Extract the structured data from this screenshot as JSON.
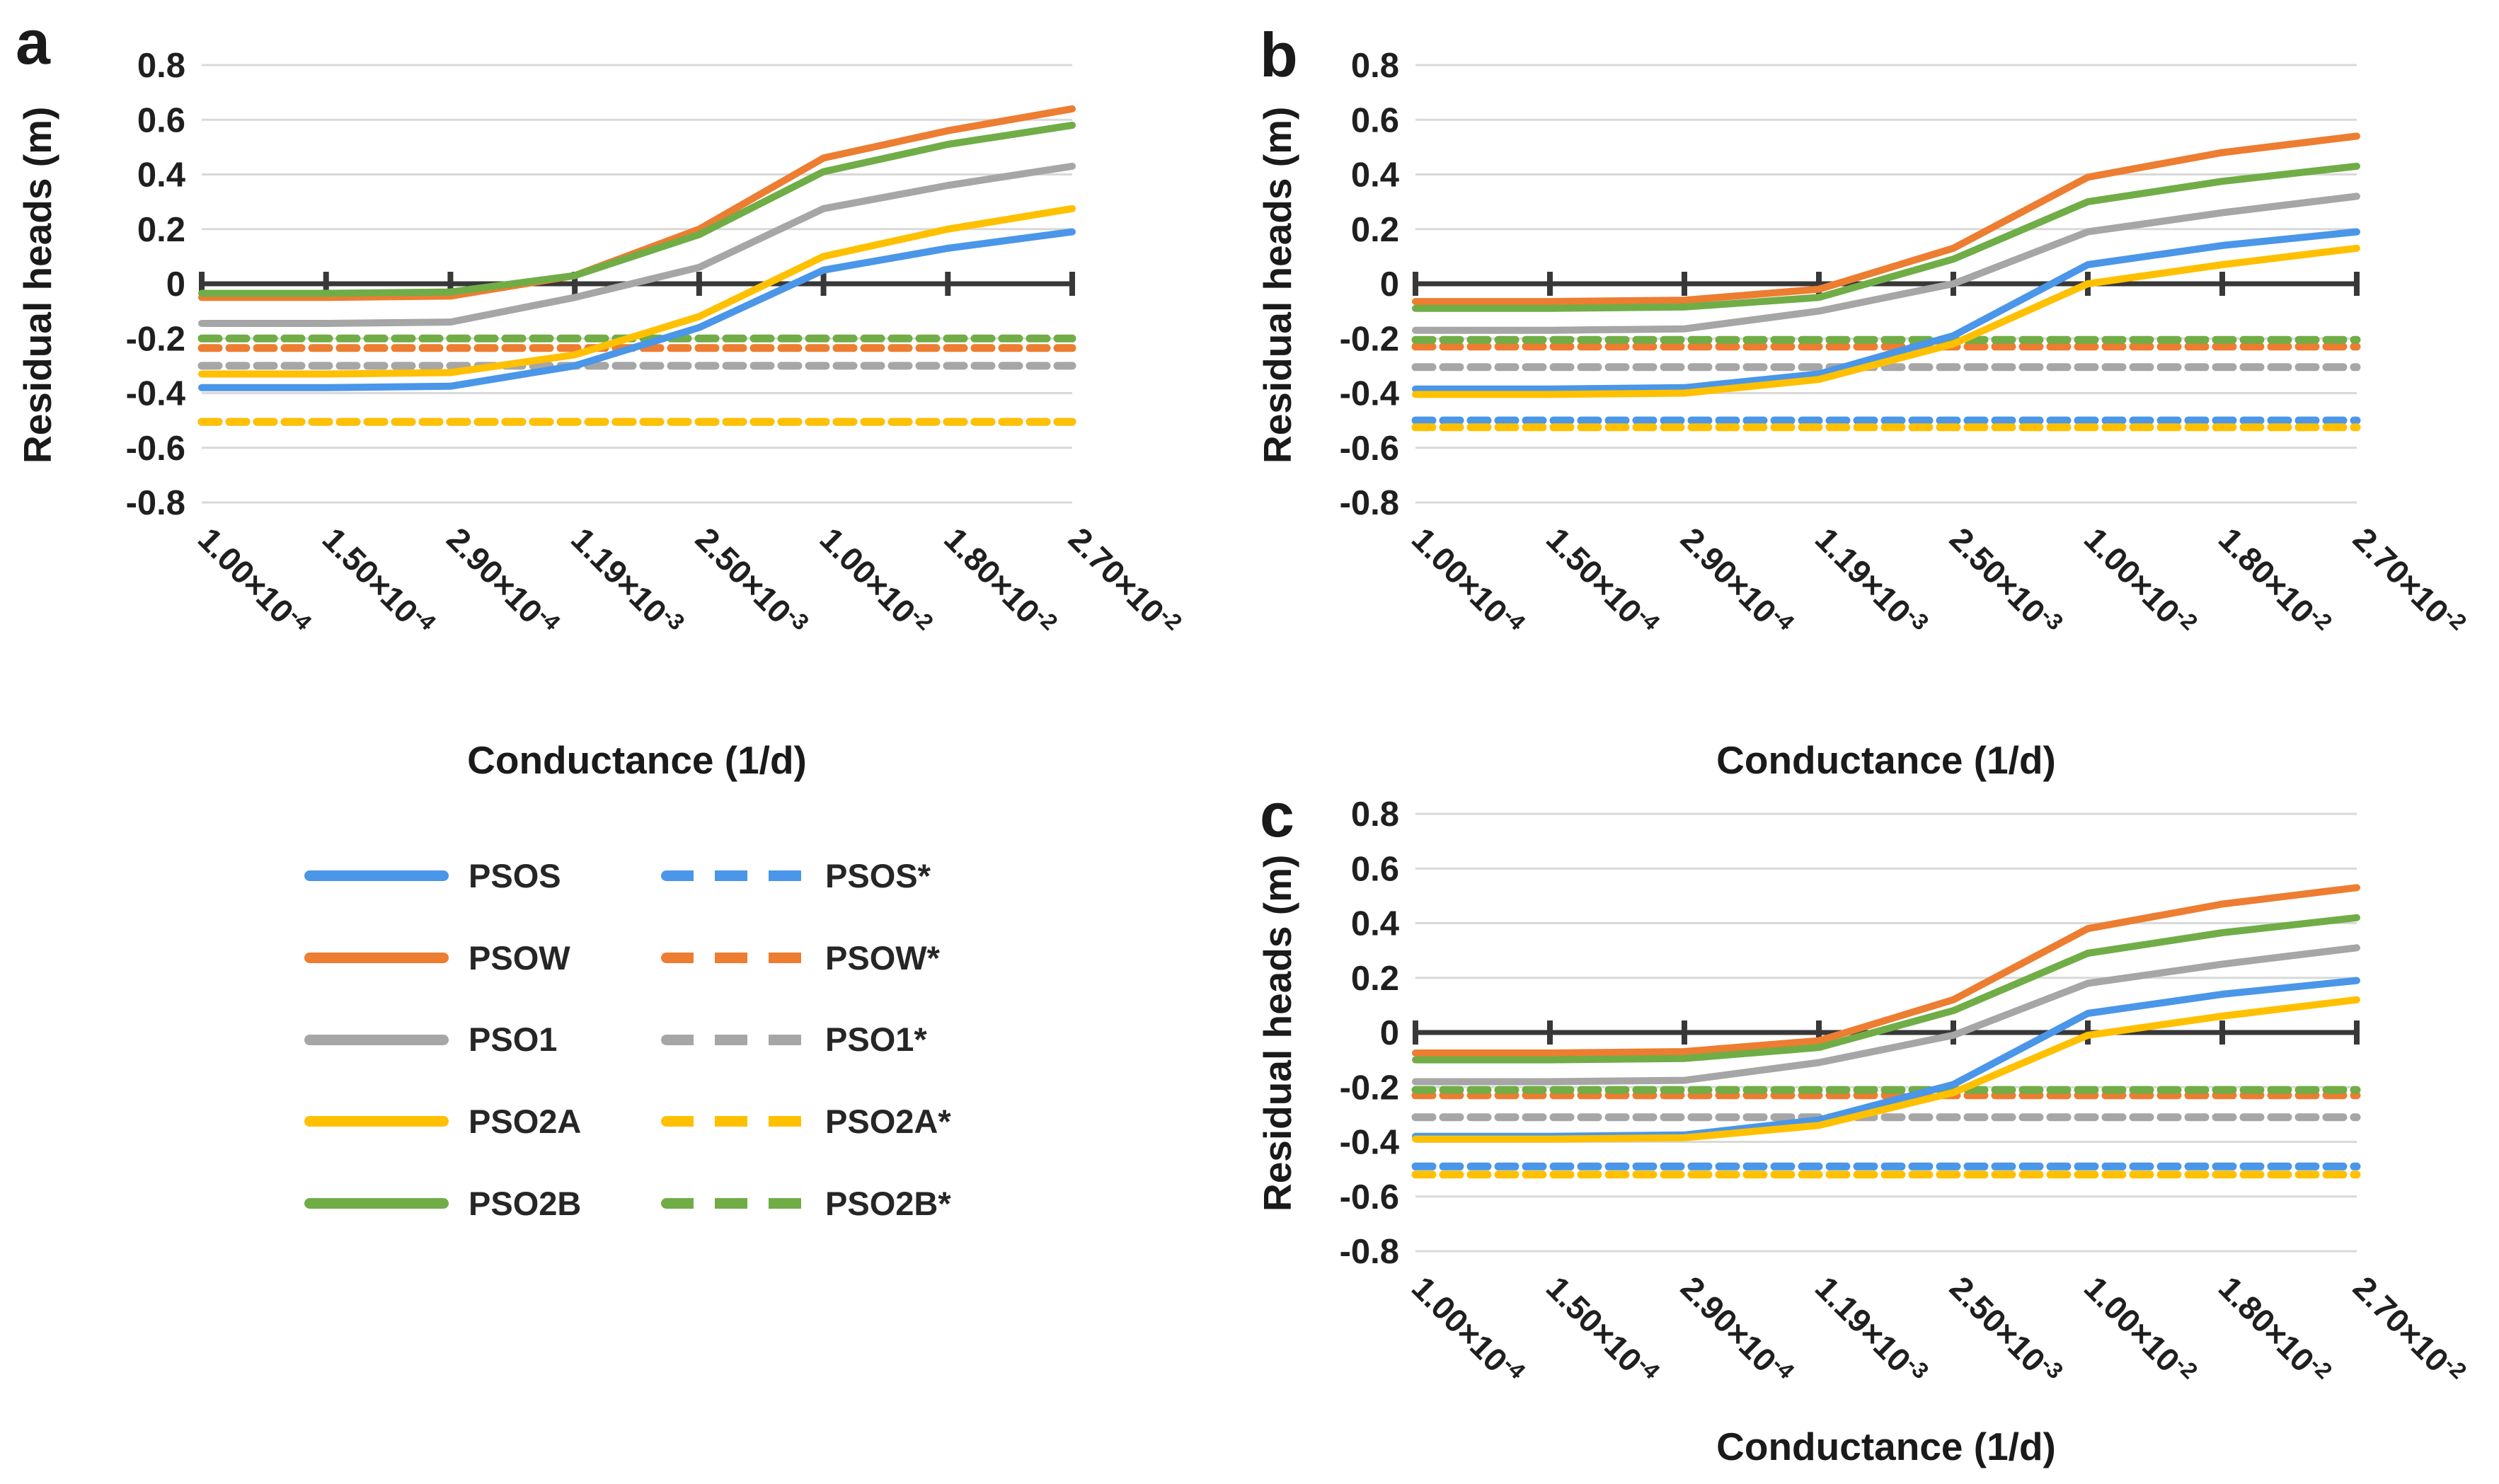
{
  "figure": {
    "panel_letters": [
      "a",
      "b",
      "c"
    ],
    "y_axis_title": "Residual heads (m)",
    "x_axis_title": "Conductance (1/d)"
  },
  "axes": {
    "y_tick_labels": [
      "0.8",
      "0.6",
      "0.4",
      "0.2",
      "0",
      "-0.2",
      "-0.4",
      "-0.6",
      "-0.8"
    ],
    "y_max": 0.8,
    "y_min": -0.8,
    "y_step": 0.2,
    "x_tick_labels": [
      {
        "base": "1.00×10",
        "exp": "-4"
      },
      {
        "base": "1.50×10",
        "exp": "-4"
      },
      {
        "base": "2.90×10",
        "exp": "-4"
      },
      {
        "base": "1.19×10",
        "exp": "-3"
      },
      {
        "base": "2.50×10",
        "exp": "-3"
      },
      {
        "base": "1.00×10",
        "exp": "-2"
      },
      {
        "base": "1.80×10",
        "exp": "-2"
      },
      {
        "base": "2.70×10",
        "exp": "-2"
      }
    ]
  },
  "colors": {
    "blue": "#4A96E8",
    "orange": "#ED7D31",
    "gray": "#A6A6A6",
    "yellow": "#FFC000",
    "green": "#70AD47",
    "axis": "#383838",
    "gridline": "#D9D9D9",
    "text": "#1f1f1f"
  },
  "legend": {
    "items": [
      {
        "label": "PSOS",
        "style": "solid",
        "color": "#4A96E8"
      },
      {
        "label": "PSOS*",
        "style": "dashed",
        "color": "#4A96E8"
      },
      {
        "label": "PSOW",
        "style": "solid",
        "color": "#ED7D31"
      },
      {
        "label": "PSOW*",
        "style": "dashed",
        "color": "#ED7D31"
      },
      {
        "label": "PSO1",
        "style": "solid",
        "color": "#A6A6A6"
      },
      {
        "label": "PSO1*",
        "style": "dashed",
        "color": "#A6A6A6"
      },
      {
        "label": "PSO2A",
        "style": "solid",
        "color": "#FFC000"
      },
      {
        "label": "PSO2A*",
        "style": "dashed",
        "color": "#FFC000"
      },
      {
        "label": "PSO2B",
        "style": "solid",
        "color": "#70AD47"
      },
      {
        "label": "PSO2B*",
        "style": "dashed",
        "color": "#70AD47"
      }
    ]
  },
  "chart_data": [
    {
      "type": "line",
      "panel": "a",
      "xlabel": "Conductance (1/d)",
      "ylabel": "Residual heads (m)",
      "ylim": [
        -0.8,
        0.8
      ],
      "grid": true,
      "categories": [
        "1.00×10⁻⁴",
        "1.50×10⁻⁴",
        "2.90×10⁻⁴",
        "1.19×10⁻³",
        "2.50×10⁻³",
        "1.00×10⁻²",
        "1.80×10⁻²",
        "2.70×10⁻²"
      ],
      "series": [
        {
          "name": "PSOS",
          "color": "#4A96E8",
          "dashed": false,
          "values": [
            -0.38,
            -0.38,
            -0.375,
            -0.3,
            -0.16,
            0.05,
            0.13,
            0.19
          ]
        },
        {
          "name": "PSOW",
          "color": "#ED7D31",
          "dashed": false,
          "values": [
            -0.05,
            -0.05,
            -0.045,
            0.03,
            0.2,
            0.46,
            0.56,
            0.64
          ]
        },
        {
          "name": "PSO1",
          "color": "#A6A6A6",
          "dashed": false,
          "values": [
            -0.145,
            -0.145,
            -0.14,
            -0.05,
            0.06,
            0.275,
            0.36,
            0.43
          ]
        },
        {
          "name": "PSO2A",
          "color": "#FFC000",
          "dashed": false,
          "values": [
            -0.33,
            -0.33,
            -0.325,
            -0.26,
            -0.12,
            0.1,
            0.2,
            0.275
          ]
        },
        {
          "name": "PSO2B",
          "color": "#70AD47",
          "dashed": false,
          "values": [
            -0.035,
            -0.035,
            -0.03,
            0.03,
            0.18,
            0.41,
            0.51,
            0.58
          ]
        },
        {
          "name": "PSOS*",
          "color": "#4A96E8",
          "dashed": true,
          "values": [
            -0.505,
            -0.505,
            -0.505,
            -0.505,
            -0.505,
            -0.505,
            -0.505,
            -0.505
          ]
        },
        {
          "name": "PSOW*",
          "color": "#ED7D31",
          "dashed": true,
          "values": [
            -0.235,
            -0.235,
            -0.235,
            -0.235,
            -0.235,
            -0.235,
            -0.235,
            -0.235
          ]
        },
        {
          "name": "PSO1*",
          "color": "#A6A6A6",
          "dashed": true,
          "values": [
            -0.3,
            -0.3,
            -0.3,
            -0.3,
            -0.3,
            -0.3,
            -0.3,
            -0.3
          ]
        },
        {
          "name": "PSO2A*",
          "color": "#FFC000",
          "dashed": true,
          "values": [
            -0.505,
            -0.505,
            -0.505,
            -0.505,
            -0.505,
            -0.505,
            -0.505,
            -0.505
          ]
        },
        {
          "name": "PSO2B*",
          "color": "#70AD47",
          "dashed": true,
          "values": [
            -0.2,
            -0.2,
            -0.2,
            -0.2,
            -0.2,
            -0.2,
            -0.2,
            -0.2
          ]
        }
      ]
    },
    {
      "type": "line",
      "panel": "b",
      "xlabel": "Conductance (1/d)",
      "ylabel": "Residual heads (m)",
      "ylim": [
        -0.8,
        0.8
      ],
      "grid": true,
      "categories": [
        "1.00×10⁻⁴",
        "1.50×10⁻⁴",
        "2.90×10⁻⁴",
        "1.19×10⁻³",
        "2.50×10⁻³",
        "1.00×10⁻²",
        "1.80×10⁻²",
        "2.70×10⁻²"
      ],
      "series": [
        {
          "name": "PSOS",
          "color": "#4A96E8",
          "dashed": false,
          "values": [
            -0.385,
            -0.385,
            -0.38,
            -0.33,
            -0.19,
            0.07,
            0.14,
            0.19
          ]
        },
        {
          "name": "PSOW",
          "color": "#ED7D31",
          "dashed": false,
          "values": [
            -0.065,
            -0.065,
            -0.06,
            -0.02,
            0.13,
            0.39,
            0.48,
            0.54
          ]
        },
        {
          "name": "PSO1",
          "color": "#A6A6A6",
          "dashed": false,
          "values": [
            -0.17,
            -0.17,
            -0.165,
            -0.1,
            0.0,
            0.19,
            0.26,
            0.32
          ]
        },
        {
          "name": "PSO2A",
          "color": "#FFC000",
          "dashed": false,
          "values": [
            -0.405,
            -0.405,
            -0.4,
            -0.35,
            -0.22,
            0.0,
            0.07,
            0.13
          ]
        },
        {
          "name": "PSO2B",
          "color": "#70AD47",
          "dashed": false,
          "values": [
            -0.09,
            -0.09,
            -0.085,
            -0.05,
            0.09,
            0.3,
            0.375,
            0.43
          ]
        },
        {
          "name": "PSOS*",
          "color": "#4A96E8",
          "dashed": true,
          "values": [
            -0.5,
            -0.5,
            -0.5,
            -0.5,
            -0.5,
            -0.5,
            -0.5,
            -0.5
          ]
        },
        {
          "name": "PSOW*",
          "color": "#ED7D31",
          "dashed": true,
          "values": [
            -0.23,
            -0.23,
            -0.23,
            -0.23,
            -0.23,
            -0.23,
            -0.23,
            -0.23
          ]
        },
        {
          "name": "PSO1*",
          "color": "#A6A6A6",
          "dashed": true,
          "values": [
            -0.305,
            -0.305,
            -0.305,
            -0.305,
            -0.305,
            -0.305,
            -0.305,
            -0.305
          ]
        },
        {
          "name": "PSO2A*",
          "color": "#FFC000",
          "dashed": true,
          "values": [
            -0.525,
            -0.525,
            -0.525,
            -0.525,
            -0.525,
            -0.525,
            -0.525,
            -0.525
          ]
        },
        {
          "name": "PSO2B*",
          "color": "#70AD47",
          "dashed": true,
          "values": [
            -0.205,
            -0.205,
            -0.205,
            -0.205,
            -0.205,
            -0.205,
            -0.205,
            -0.205
          ]
        }
      ]
    },
    {
      "type": "line",
      "panel": "c",
      "xlabel": "Conductance (1/d)",
      "ylabel": "Residual heads (m)",
      "ylim": [
        -0.8,
        0.8
      ],
      "grid": true,
      "categories": [
        "1.00×10⁻⁴",
        "1.50×10⁻⁴",
        "2.90×10⁻⁴",
        "1.19×10⁻³",
        "2.50×10⁻³",
        "1.00×10⁻²",
        "1.80×10⁻²",
        "2.70×10⁻²"
      ],
      "series": [
        {
          "name": "PSOS",
          "color": "#4A96E8",
          "dashed": false,
          "values": [
            -0.38,
            -0.38,
            -0.375,
            -0.32,
            -0.19,
            0.07,
            0.14,
            0.19
          ]
        },
        {
          "name": "PSOW",
          "color": "#ED7D31",
          "dashed": false,
          "values": [
            -0.075,
            -0.075,
            -0.07,
            -0.03,
            0.12,
            0.38,
            0.47,
            0.53
          ]
        },
        {
          "name": "PSO1",
          "color": "#A6A6A6",
          "dashed": false,
          "values": [
            -0.18,
            -0.18,
            -0.175,
            -0.11,
            -0.01,
            0.18,
            0.25,
            0.31
          ]
        },
        {
          "name": "PSO2A",
          "color": "#FFC000",
          "dashed": false,
          "values": [
            -0.39,
            -0.39,
            -0.385,
            -0.34,
            -0.22,
            -0.01,
            0.06,
            0.12
          ]
        },
        {
          "name": "PSO2B",
          "color": "#70AD47",
          "dashed": false,
          "values": [
            -0.1,
            -0.1,
            -0.095,
            -0.055,
            0.08,
            0.29,
            0.365,
            0.42
          ]
        },
        {
          "name": "PSOS*",
          "color": "#4A96E8",
          "dashed": true,
          "values": [
            -0.49,
            -0.49,
            -0.49,
            -0.49,
            -0.49,
            -0.49,
            -0.49,
            -0.49
          ]
        },
        {
          "name": "PSOW*",
          "color": "#ED7D31",
          "dashed": true,
          "values": [
            -0.23,
            -0.23,
            -0.23,
            -0.23,
            -0.23,
            -0.23,
            -0.23,
            -0.23
          ]
        },
        {
          "name": "PSO1*",
          "color": "#A6A6A6",
          "dashed": true,
          "values": [
            -0.31,
            -0.31,
            -0.31,
            -0.31,
            -0.31,
            -0.31,
            -0.31,
            -0.31
          ]
        },
        {
          "name": "PSO2A*",
          "color": "#FFC000",
          "dashed": true,
          "values": [
            -0.52,
            -0.52,
            -0.52,
            -0.52,
            -0.52,
            -0.52,
            -0.52,
            -0.52
          ]
        },
        {
          "name": "PSO2B*",
          "color": "#70AD47",
          "dashed": true,
          "values": [
            -0.21,
            -0.21,
            -0.21,
            -0.21,
            -0.21,
            -0.21,
            -0.21,
            -0.21
          ]
        }
      ]
    }
  ]
}
